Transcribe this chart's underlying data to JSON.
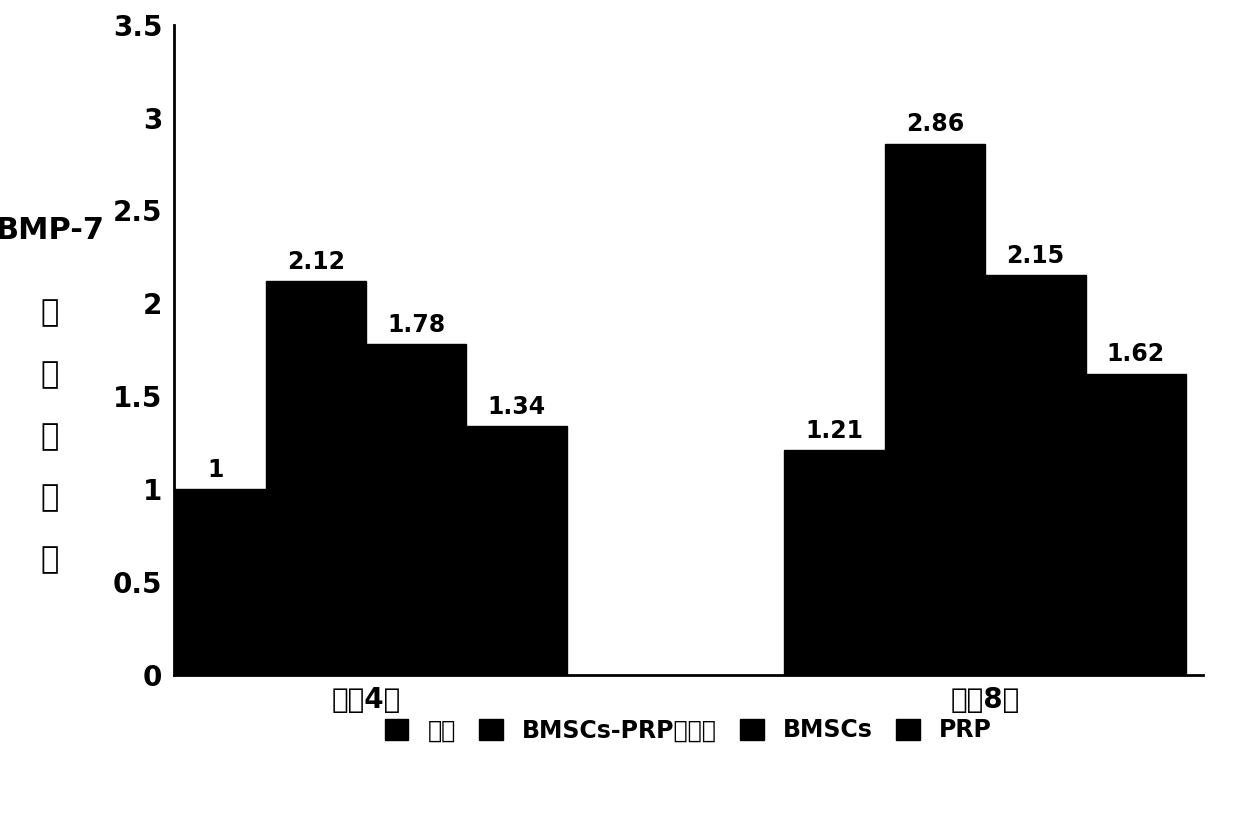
{
  "groups": [
    "术哠4周",
    "术哠8周"
  ],
  "categories": [
    "对照",
    "BMSCs-PRP复合物",
    "BMSCs",
    "PRP"
  ],
  "values": [
    [
      1.0,
      2.12,
      1.78,
      1.34
    ],
    [
      1.21,
      2.86,
      2.15,
      1.62
    ]
  ],
  "annotations": [
    [
      "1",
      "2.12",
      "1.78",
      "1.34"
    ],
    [
      "1.21",
      "2.86",
      "2.15",
      "1.62"
    ]
  ],
  "bar_color": "#000000",
  "ylim": [
    0,
    3.5
  ],
  "yticks": [
    0,
    0.5,
    1,
    1.5,
    2,
    2.5,
    3,
    3.5
  ],
  "ytick_labels": [
    "0",
    "0.5",
    "1",
    "1.5",
    "2",
    "2.5",
    "3",
    "3.5"
  ],
  "ylabel_line1": "BMP-7",
  "ylabel_line2": "相对表达量",
  "legend_labels": [
    "对照",
    "BMSCs-PRP复合物",
    "BMSCs",
    "PRP"
  ],
  "bar_width": 0.12,
  "group_centers": [
    0.38,
    1.12
  ],
  "label_fontsize": 20,
  "tick_fontsize": 20,
  "legend_fontsize": 17,
  "annotation_fontsize": 17,
  "ylabel_fontsize": 22
}
